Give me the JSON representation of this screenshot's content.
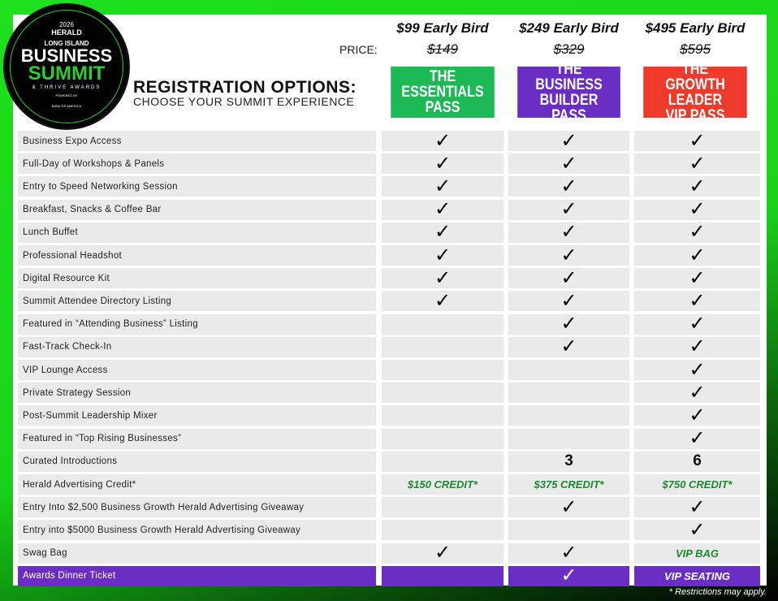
{
  "logo": {
    "year": "2026",
    "brand": "HERALD",
    "region": "LONG ISLAND",
    "line1": "BUSINESS",
    "line2": "SUMMIT",
    "line3": "& THRIVE AWARDS",
    "powered": "POWERED BY",
    "sponsor": "BANK OF AMERICA"
  },
  "heading": {
    "title": "REGISTRATION OPTIONS:",
    "subtitle": "CHOOSE YOUR SUMMIT EXPERIENCE"
  },
  "price_label": "PRICE:",
  "passes": [
    {
      "early": "$99 Early Bird",
      "regular": "$149",
      "name1": "THE",
      "name2": "ESSENTIALS",
      "name3": "PASS",
      "color": "#1db954"
    },
    {
      "early": "$249 Early Bird",
      "regular": "$329",
      "name1": "THE",
      "name2": "BUSINESS BUILDER",
      "name3": "PASS",
      "color": "#6a2ec4"
    },
    {
      "early": "$495 Early Bird",
      "regular": "$595",
      "name1": "THE",
      "name2": "GROWTH LEADER",
      "name3": "VIP PASS",
      "color": "#ee3a2c"
    }
  ],
  "check": "✓",
  "rows": [
    {
      "label": "Business Expo Access",
      "v": [
        "✓",
        "✓",
        "✓"
      ]
    },
    {
      "label": "Full-Day of Workshops & Panels",
      "v": [
        "✓",
        "✓",
        "✓"
      ]
    },
    {
      "label": "Entry to Speed Networking Session",
      "v": [
        "✓",
        "✓",
        "✓"
      ]
    },
    {
      "label": "Breakfast, Snacks & Coffee Bar",
      "v": [
        "✓",
        "✓",
        "✓"
      ]
    },
    {
      "label": "Lunch Buffet",
      "v": [
        "✓",
        "✓",
        "✓"
      ]
    },
    {
      "label": "Professional Headshot",
      "v": [
        "✓",
        "✓",
        "✓"
      ]
    },
    {
      "label": "Digital Resource Kit",
      "v": [
        "✓",
        "✓",
        "✓"
      ]
    },
    {
      "label": "Summit Attendee Directory Listing",
      "v": [
        "✓",
        "✓",
        "✓"
      ]
    },
    {
      "label": "Featured in “Attending Business” Listing",
      "v": [
        "",
        "✓",
        "✓"
      ]
    },
    {
      "label": "Fast-Track Check-In",
      "v": [
        "",
        "✓",
        "✓"
      ]
    },
    {
      "label": "VIP Lounge Access",
      "v": [
        "",
        "",
        "✓"
      ]
    },
    {
      "label": "Private Strategy Session",
      "v": [
        "",
        "",
        "✓"
      ]
    },
    {
      "label": "Post-Summit Leadership Mixer",
      "v": [
        "",
        "",
        "✓"
      ]
    },
    {
      "label": "Featured in “Top Rising Businesses”",
      "v": [
        "",
        "",
        "✓"
      ]
    },
    {
      "label": "Curated Introductions",
      "v": [
        "",
        "3",
        "6"
      ]
    },
    {
      "label": "Herald Advertising Credit*",
      "v": [
        "$150 CREDIT*",
        "$375 CREDIT*",
        "$750 CREDIT*"
      ]
    },
    {
      "label": "Entry Into $2,500 Business Growth Herald Advertising Giveaway",
      "v": [
        "",
        "✓",
        "✓"
      ]
    },
    {
      "label": "Entry into $5000 Business Growth Herald Advertising Giveaway",
      "v": [
        "",
        "",
        "✓"
      ]
    },
    {
      "label": "Swag Bag",
      "v": [
        "✓",
        "✓",
        "VIP BAG"
      ]
    },
    {
      "label": "Awards Dinner Ticket",
      "v": [
        "",
        "✓",
        "VIP SEATING"
      ],
      "highlight": true
    }
  ],
  "footnote": "* Restrictions may apply."
}
